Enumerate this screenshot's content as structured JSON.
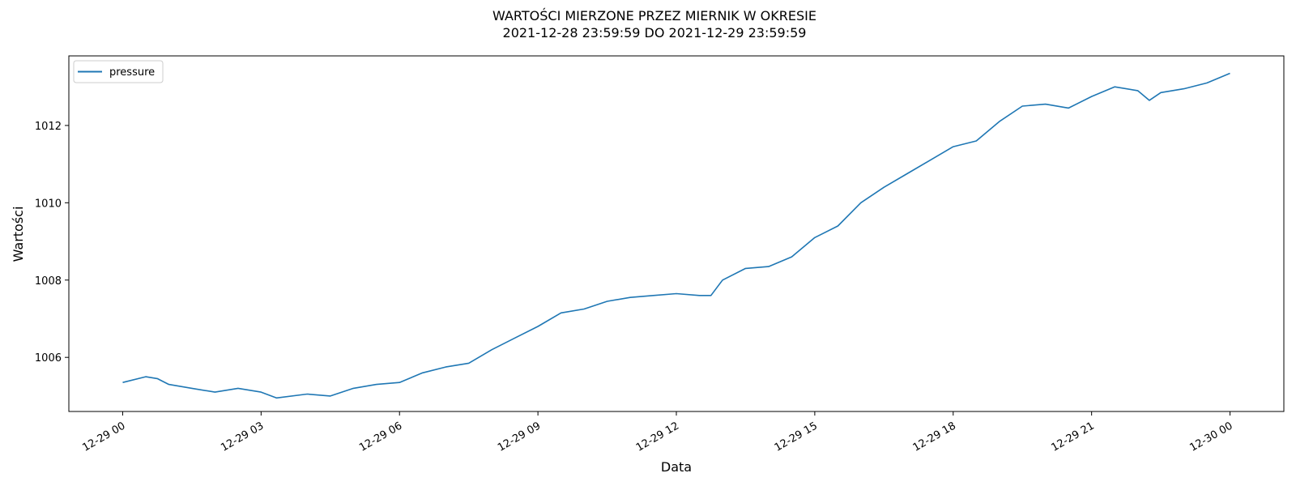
{
  "chart_data": {
    "type": "line",
    "title": "WARTOŚCI MIERZONE PRZEZ MIERNIK W OKRESIE",
    "subtitle": "2021-12-28 23:59:59 DO 2021-12-29 23:59:59",
    "xlabel": "Data",
    "ylabel": "Wartości",
    "x_ticks": [
      "12-29 00",
      "12-29 03",
      "12-29 06",
      "12-29 09",
      "12-29 12",
      "12-29 15",
      "12-29 18",
      "12-29 21",
      "12-30 00"
    ],
    "y_ticks": [
      "1006",
      "1008",
      "1010",
      "1012"
    ],
    "xlim": [
      "2021-12-28 22:50",
      "2021-12-30 01:10"
    ],
    "ylim": [
      1004.6,
      1013.8
    ],
    "grid": false,
    "legend_position": "top-left",
    "series": [
      {
        "name": "pressure",
        "color": "#1f77b4",
        "x": [
          "2021-12-29 00:00",
          "2021-12-29 00:30",
          "2021-12-29 00:45",
          "2021-12-29 01:00",
          "2021-12-29 01:30",
          "2021-12-29 02:00",
          "2021-12-29 02:30",
          "2021-12-29 03:00",
          "2021-12-29 03:20",
          "2021-12-29 04:00",
          "2021-12-29 04:30",
          "2021-12-29 05:00",
          "2021-12-29 05:30",
          "2021-12-29 06:00",
          "2021-12-29 06:30",
          "2021-12-29 07:00",
          "2021-12-29 07:30",
          "2021-12-29 08:00",
          "2021-12-29 08:30",
          "2021-12-29 09:00",
          "2021-12-29 09:30",
          "2021-12-29 10:00",
          "2021-12-29 10:30",
          "2021-12-29 11:00",
          "2021-12-29 11:30",
          "2021-12-29 12:00",
          "2021-12-29 12:30",
          "2021-12-29 12:45",
          "2021-12-29 13:00",
          "2021-12-29 13:30",
          "2021-12-29 14:00",
          "2021-12-29 14:30",
          "2021-12-29 15:00",
          "2021-12-29 15:30",
          "2021-12-29 16:00",
          "2021-12-29 16:30",
          "2021-12-29 17:00",
          "2021-12-29 17:30",
          "2021-12-29 18:00",
          "2021-12-29 18:30",
          "2021-12-29 19:00",
          "2021-12-29 19:30",
          "2021-12-29 20:00",
          "2021-12-29 20:30",
          "2021-12-29 21:00",
          "2021-12-29 21:30",
          "2021-12-29 22:00",
          "2021-12-29 22:15",
          "2021-12-29 22:30",
          "2021-12-29 23:00",
          "2021-12-29 23:30",
          "2021-12-30 00:00"
        ],
        "values": [
          1005.35,
          1005.5,
          1005.45,
          1005.3,
          1005.2,
          1005.1,
          1005.2,
          1005.1,
          1004.95,
          1005.05,
          1005.0,
          1005.2,
          1005.3,
          1005.35,
          1005.6,
          1005.75,
          1005.85,
          1006.2,
          1006.5,
          1006.8,
          1007.15,
          1007.25,
          1007.45,
          1007.55,
          1007.6,
          1007.65,
          1007.6,
          1007.6,
          1008.0,
          1008.3,
          1008.35,
          1008.6,
          1009.1,
          1009.4,
          1010.0,
          1010.4,
          1010.75,
          1011.1,
          1011.45,
          1011.6,
          1012.1,
          1012.5,
          1012.55,
          1012.45,
          1012.75,
          1013.0,
          1012.9,
          1012.65,
          1012.85,
          1012.95,
          1013.1,
          1013.35
        ]
      }
    ]
  }
}
